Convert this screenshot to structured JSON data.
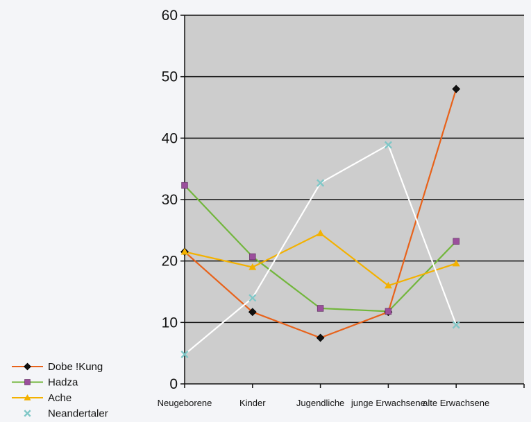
{
  "chart_data": {
    "type": "line",
    "categories": [
      "Neugeborene",
      "Kinder",
      "Jugendliche",
      "junge Erwachsene",
      "alte Erwachsene"
    ],
    "series": [
      {
        "name": "Dobe !Kung",
        "values": [
          21.5,
          11.7,
          7.5,
          11.7,
          48.0
        ],
        "color": "#e8621a",
        "marker": "diamond",
        "marker_color": "#111111"
      },
      {
        "name": "Hadza",
        "values": [
          32.3,
          20.7,
          12.3,
          11.8,
          23.2
        ],
        "color": "#72b63c",
        "marker": "square",
        "marker_color": "#9b4f9c"
      },
      {
        "name": "Ache",
        "values": [
          21.5,
          19.0,
          24.5,
          16.0,
          19.6
        ],
        "color": "#f3b100",
        "marker": "triangle",
        "marker_color": "#f3b100"
      },
      {
        "name": "Neandertaler",
        "values": [
          4.8,
          14.0,
          32.7,
          38.9,
          9.6
        ],
        "color": "#ffffff",
        "marker": "x",
        "marker_color": "#7fc7c7"
      }
    ],
    "ylim": [
      0,
      60
    ],
    "yticks": [
      0,
      10,
      20,
      30,
      40,
      50,
      60
    ],
    "grid": true,
    "plot_background": "#cdcdcd",
    "legend_position": "bottom-left",
    "title": "",
    "xlabel": "",
    "ylabel": ""
  }
}
